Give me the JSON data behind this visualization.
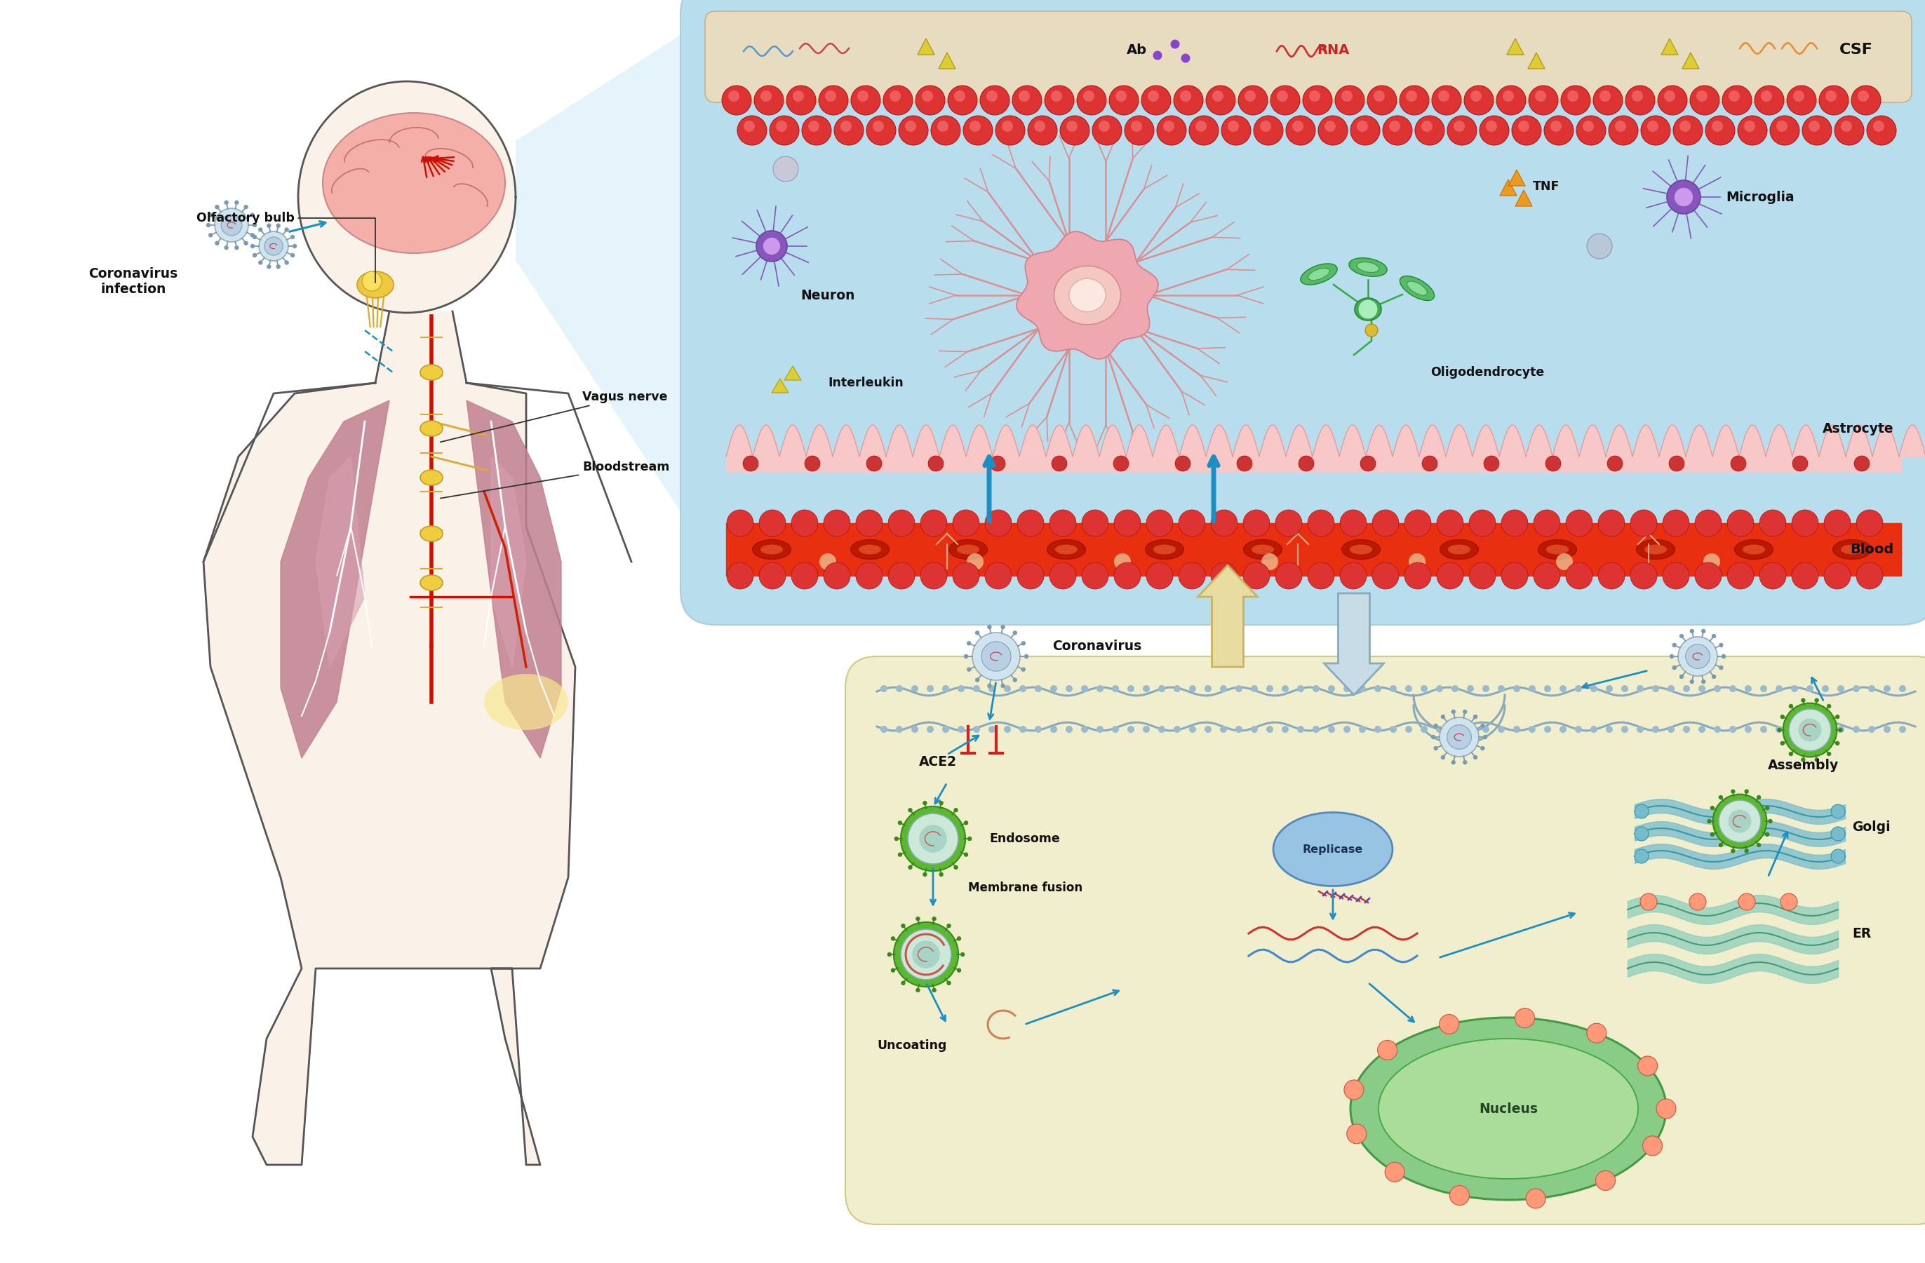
{
  "fig_width": 27.44,
  "fig_height": 18.01,
  "bg_color": "#ffffff",
  "blue_panel_bg": "#b8dded",
  "yellow_panel_bg": "#f0eecc",
  "csf_bar_color": "#e8dcc0",
  "labels": {
    "olfactory_bulb": "Olfactory bulb",
    "vagus_nerve": "Vagus nerve",
    "bloodstream": "Bloodstream",
    "coronavirus_infection": "Coronavirus\ninfection",
    "csf": "CSF",
    "ab": "Ab",
    "rna": "RNA",
    "tnf": "TNF",
    "microglia": "Microglia",
    "neuron": "Neuron",
    "oligodendrocyte": "Oligodendrocyte",
    "interleukin": "Interleukin",
    "astrocyte": "Astrocyte",
    "blood": "Blood",
    "coronavirus": "Coronavirus",
    "ace2": "ACE2",
    "endosome": "Endosome",
    "membrane_fusion": "Membrane fusion",
    "replicase": "Replicase",
    "assembly": "Assembly",
    "golgi": "Golgi",
    "er": "ER",
    "nucleus": "Nucleus",
    "uncoating": "Uncoating"
  },
  "arrow_color": "#1b8fc4",
  "text_color": "#111111"
}
